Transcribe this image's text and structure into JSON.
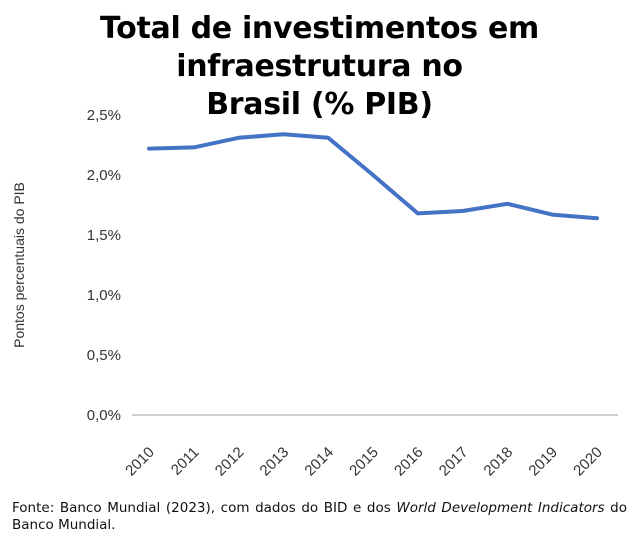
{
  "chart_data": {
    "type": "line",
    "title_line1": "Total de investimentos em infraestrutura no",
    "title_line2": "Brasil (% PIB)",
    "xlabel": "",
    "ylabel": "Pontos percentuais do PIB",
    "x": [
      "2010",
      "2011",
      "2012",
      "2013",
      "2014",
      "2015",
      "2016",
      "2017",
      "2018",
      "2019",
      "2020"
    ],
    "series": [
      {
        "values": [
          2.22,
          2.23,
          2.31,
          2.34,
          2.31,
          2.0,
          1.68,
          1.7,
          1.76,
          1.67,
          1.64
        ]
      }
    ],
    "ylim": [
      0,
      2.5
    ],
    "yticks": [
      {
        "value": 0.0,
        "label": "0,0%"
      },
      {
        "value": 0.5,
        "label": "0,5%"
      },
      {
        "value": 1.0,
        "label": "1,0%"
      },
      {
        "value": 1.5,
        "label": "1,5%"
      },
      {
        "value": 2.0,
        "label": "2,0%"
      },
      {
        "value": 2.5,
        "label": "2,5%"
      }
    ],
    "grid": false,
    "legend": "none",
    "line_color": "#4472c4",
    "axis_color": "#bfbfbf"
  },
  "source": {
    "prefix": "Fonte: Banco Mundial (2023), com dados do BID e dos ",
    "italic": "World Development Indicators",
    "suffix": " do Banco Mundial."
  }
}
